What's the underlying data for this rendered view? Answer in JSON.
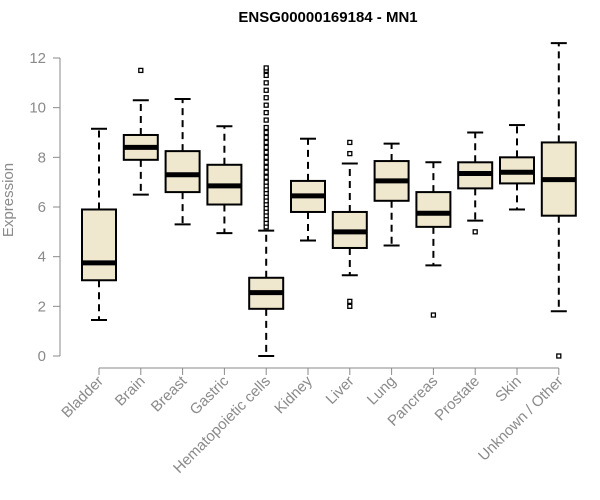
{
  "chart_data": {
    "type": "boxplot",
    "title": "ENSG00000169184 - MN1",
    "ylabel": "Expression",
    "xlabel": "",
    "ylim": [
      0,
      12
    ],
    "yticks": [
      0,
      2,
      4,
      6,
      8,
      10,
      12
    ],
    "grid": false,
    "legend": "none",
    "box_color": "#efe8cf",
    "median_color": "#000000",
    "categories": [
      "Bladder",
      "Brain",
      "Breast",
      "Gastric",
      "Hematopoietic cells",
      "Kidney",
      "Liver",
      "Lung",
      "Pancreas",
      "Prostate",
      "Skin",
      "Unknown / Other"
    ],
    "boxes": [
      {
        "category": "Bladder",
        "whisker_low": 1.45,
        "q1": 3.05,
        "median": 3.75,
        "q3": 5.9,
        "whisker_high": 9.15,
        "outliers": []
      },
      {
        "category": "Brain",
        "whisker_low": 6.5,
        "q1": 7.9,
        "median": 8.4,
        "q3": 8.9,
        "whisker_high": 10.3,
        "outliers": [
          11.5
        ]
      },
      {
        "category": "Breast",
        "whisker_low": 5.3,
        "q1": 6.6,
        "median": 7.3,
        "q3": 8.25,
        "whisker_high": 10.35,
        "outliers": []
      },
      {
        "category": "Gastric",
        "whisker_low": 4.95,
        "q1": 6.1,
        "median": 6.85,
        "q3": 7.7,
        "whisker_high": 9.25,
        "outliers": []
      },
      {
        "category": "Hematopoietic cells",
        "whisker_low": 0.0,
        "q1": 1.9,
        "median": 2.55,
        "q3": 3.15,
        "whisker_high": 5.05,
        "outliers": [
          5.2,
          5.35,
          5.5,
          5.65,
          5.8,
          5.95,
          6.1,
          6.25,
          6.4,
          6.55,
          6.7,
          6.85,
          7.0,
          7.2,
          7.4,
          7.6,
          7.8,
          8.0,
          8.2,
          8.4,
          8.6,
          8.8,
          9.0,
          9.2,
          9.5,
          9.8,
          10.1,
          10.4,
          10.7,
          11.0,
          11.3,
          11.5,
          11.6
        ]
      },
      {
        "category": "Kidney",
        "whisker_low": 4.65,
        "q1": 5.8,
        "median": 6.45,
        "q3": 7.05,
        "whisker_high": 8.75,
        "outliers": []
      },
      {
        "category": "Liver",
        "whisker_low": 3.25,
        "q1": 4.35,
        "median": 5.0,
        "q3": 5.8,
        "whisker_high": 7.75,
        "outliers": [
          2.0,
          2.2,
          8.15,
          8.6
        ]
      },
      {
        "category": "Lung",
        "whisker_low": 4.45,
        "q1": 6.25,
        "median": 7.05,
        "q3": 7.85,
        "whisker_high": 8.55,
        "outliers": []
      },
      {
        "category": "Pancreas",
        "whisker_low": 3.65,
        "q1": 5.2,
        "median": 5.75,
        "q3": 6.6,
        "whisker_high": 7.8,
        "outliers": [
          1.65
        ]
      },
      {
        "category": "Prostate",
        "whisker_low": 5.45,
        "q1": 6.75,
        "median": 7.35,
        "q3": 7.8,
        "whisker_high": 9.0,
        "outliers": [
          5.0
        ]
      },
      {
        "category": "Skin",
        "whisker_low": 5.9,
        "q1": 6.95,
        "median": 7.4,
        "q3": 8.0,
        "whisker_high": 9.3,
        "outliers": []
      },
      {
        "category": "Unknown / Other",
        "whisker_low": 1.8,
        "q1": 5.65,
        "median": 7.1,
        "q3": 8.6,
        "whisker_high": 12.6,
        "outliers": [
          0.0
        ]
      }
    ]
  }
}
